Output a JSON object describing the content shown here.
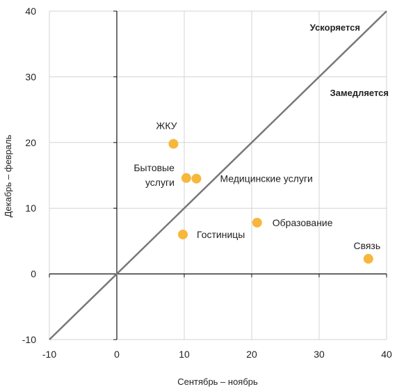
{
  "chart_data": {
    "type": "scatter",
    "xlabel": "Сентябрь – ноябрь",
    "ylabel": "Декабрь – февраль",
    "xlim": [
      -10,
      40
    ],
    "ylim": [
      -10,
      40
    ],
    "xticks": [
      -10,
      0,
      10,
      20,
      30,
      40
    ],
    "yticks": [
      -10,
      0,
      10,
      20,
      30,
      40
    ],
    "grid": true,
    "reference_line": {
      "from": [
        -10,
        -10
      ],
      "to": [
        40,
        40
      ],
      "color": "#777777"
    },
    "region_labels": [
      {
        "text": "Ускоряется",
        "x": 30,
        "y": 37
      },
      {
        "text": "Замедляется",
        "x": 35,
        "y": 27
      }
    ],
    "points": [
      {
        "label": "ЖКУ",
        "x": 8.4,
        "y": 19.8
      },
      {
        "label": "Бытовые услуги",
        "x": 10.3,
        "y": 14.6
      },
      {
        "label": "Медицинские услуги",
        "x": 11.8,
        "y": 14.5
      },
      {
        "label": "Образование",
        "x": 20.8,
        "y": 7.8
      },
      {
        "label": "Гостиницы",
        "x": 9.8,
        "y": 6.0
      },
      {
        "label": "Связь",
        "x": 37.3,
        "y": 2.3
      }
    ],
    "point_color": "#f7b73c"
  }
}
